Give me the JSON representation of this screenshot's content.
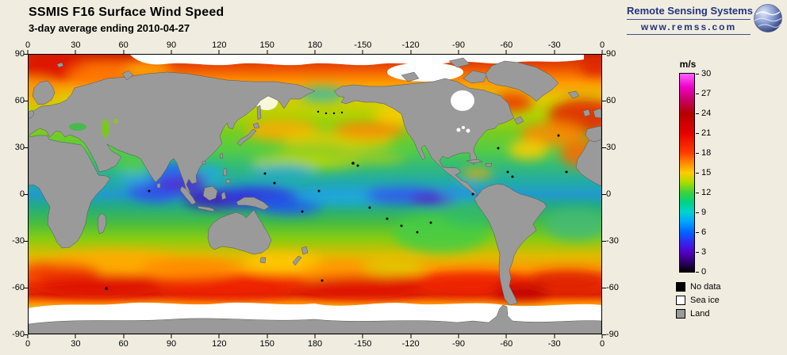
{
  "header": {
    "title": "SSMIS F16 Surface Wind Speed",
    "subtitle": "3-day average ending 2010-04-27"
  },
  "branding": {
    "name": "Remote Sensing Systems",
    "url": "www.remss.com"
  },
  "axes": {
    "lon_ticks": [
      "0",
      "30",
      "60",
      "90",
      "120",
      "150",
      "180",
      "-150",
      "-120",
      "-90",
      "-60",
      "-30",
      "0"
    ],
    "lat_ticks": [
      "90",
      "60",
      "30",
      "0",
      "-30",
      "-60",
      "-90"
    ]
  },
  "colorbar": {
    "unit": "m/s",
    "min": 0,
    "max": 30,
    "tick_labels": [
      "30",
      "27",
      "24",
      "21",
      "18",
      "15",
      "12",
      "9",
      "6",
      "3",
      "0"
    ],
    "stops": [
      {
        "v": 0,
        "c": "#000000"
      },
      {
        "v": 1.2,
        "c": "#28005a"
      },
      {
        "v": 3,
        "c": "#5400c8"
      },
      {
        "v": 4.5,
        "c": "#3228f0"
      },
      {
        "v": 6,
        "c": "#0064ff"
      },
      {
        "v": 7.5,
        "c": "#00a2ff"
      },
      {
        "v": 9,
        "c": "#00d2d2"
      },
      {
        "v": 10.5,
        "c": "#00d284"
      },
      {
        "v": 12,
        "c": "#3cd23c"
      },
      {
        "v": 13.5,
        "c": "#aadc00"
      },
      {
        "v": 15,
        "c": "#ffcc00"
      },
      {
        "v": 16.5,
        "c": "#ff8800"
      },
      {
        "v": 18,
        "c": "#ff3c00"
      },
      {
        "v": 21,
        "c": "#e60000"
      },
      {
        "v": 24,
        "c": "#b40000"
      },
      {
        "v": 26,
        "c": "#c80064"
      },
      {
        "v": 28,
        "c": "#ee00c8"
      },
      {
        "v": 30,
        "c": "#ff64ff"
      }
    ]
  },
  "legend": [
    {
      "label": "No data",
      "color": "#000000"
    },
    {
      "label": "Sea ice",
      "color": "#ffffff"
    },
    {
      "label": "Land",
      "color": "#9a9a9a"
    }
  ],
  "colors": {
    "background": "#f0ede0",
    "brand": "#22337f",
    "land": "#9a9a9a",
    "sea_ice": "#ffffff",
    "no_data": "#000000",
    "frame": "#000000"
  }
}
